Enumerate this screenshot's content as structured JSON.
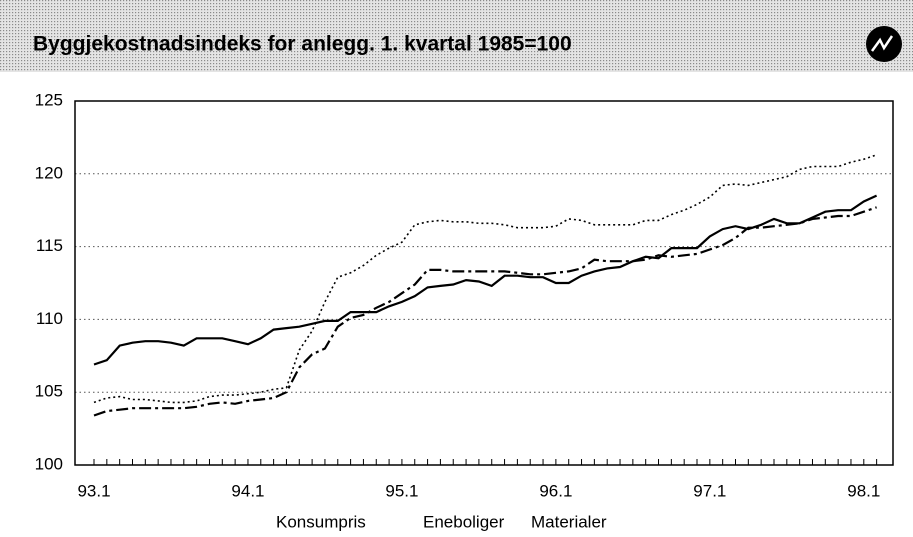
{
  "chart_data": {
    "type": "line",
    "title": "Byggjekostnadsindeks for anlegg. 1. kvartal 1985=100",
    "categories": [
      "93.1",
      null,
      null,
      null,
      null,
      null,
      null,
      null,
      null,
      null,
      null,
      null,
      "94.1",
      null,
      null,
      null,
      null,
      null,
      null,
      null,
      null,
      null,
      null,
      null,
      "95.1",
      null,
      null,
      null,
      null,
      null,
      null,
      null,
      null,
      null,
      null,
      null,
      "96.1",
      null,
      null,
      null,
      null,
      null,
      null,
      null,
      null,
      null,
      null,
      null,
      "97.1",
      null,
      null,
      null,
      null,
      null,
      null,
      null,
      null,
      null,
      null,
      null,
      "98.1",
      null
    ],
    "series": [
      {
        "name": "Konsumpris",
        "color": "#000000",
        "style": "solid",
        "values": [
          106.9,
          107.2,
          108.2,
          108.4,
          108.5,
          108.5,
          108.4,
          108.2,
          108.7,
          108.7,
          108.7,
          108.5,
          108.3,
          108.7,
          109.3,
          109.4,
          109.5,
          109.7,
          109.9,
          109.9,
          110.5,
          110.5,
          110.5,
          110.9,
          111.2,
          111.6,
          112.2,
          112.3,
          112.4,
          112.7,
          112.6,
          112.3,
          113.0,
          113.0,
          112.9,
          112.9,
          112.5,
          112.5,
          113.0,
          113.3,
          113.5,
          113.6,
          114.0,
          114.3,
          114.2,
          114.9,
          114.9,
          114.9,
          115.7,
          116.2,
          116.4,
          116.2,
          116.5,
          116.9,
          116.6,
          116.6,
          117.0,
          117.4,
          117.5,
          117.5,
          118.1,
          118.5
        ]
      },
      {
        "name": "Eneboliger",
        "color": "#000000",
        "style": "dashdot",
        "values": [
          103.4,
          103.7,
          103.8,
          103.9,
          103.9,
          103.9,
          103.9,
          103.9,
          104.0,
          104.2,
          104.3,
          104.2,
          104.4,
          104.5,
          104.6,
          105.0,
          106.7,
          107.6,
          108.0,
          109.5,
          110.1,
          110.3,
          110.8,
          111.2,
          111.8,
          112.4,
          113.4,
          113.4,
          113.3,
          113.3,
          113.3,
          113.3,
          113.3,
          113.2,
          113.1,
          113.1,
          113.2,
          113.3,
          113.5,
          114.1,
          114.0,
          114.0,
          114.0,
          114.1,
          114.4,
          114.3,
          114.4,
          114.5,
          114.8,
          115.1,
          115.6,
          116.3,
          116.3,
          116.4,
          116.5,
          116.6,
          116.9,
          117.0,
          117.1,
          117.1,
          117.4,
          117.7
        ]
      },
      {
        "name": "Materialer",
        "color": "#000000",
        "style": "dotted",
        "values": [
          104.3,
          104.6,
          104.7,
          104.5,
          104.5,
          104.4,
          104.3,
          104.3,
          104.4,
          104.7,
          104.8,
          104.8,
          104.9,
          105.0,
          105.2,
          105.3,
          107.9,
          109.2,
          111.2,
          112.9,
          113.2,
          113.7,
          114.4,
          114.9,
          115.3,
          116.5,
          116.7,
          116.8,
          116.7,
          116.7,
          116.6,
          116.6,
          116.5,
          116.3,
          116.3,
          116.3,
          116.4,
          116.9,
          116.8,
          116.5,
          116.5,
          116.5,
          116.5,
          116.8,
          116.8,
          117.2,
          117.5,
          117.9,
          118.4,
          119.2,
          119.3,
          119.2,
          119.4,
          119.6,
          119.8,
          120.3,
          120.5,
          120.5,
          120.5,
          120.8,
          121.0,
          121.3
        ]
      }
    ],
    "ylim": [
      100,
      125
    ],
    "yticks": [
      100,
      105,
      110,
      115,
      120,
      125
    ],
    "grid": true
  }
}
